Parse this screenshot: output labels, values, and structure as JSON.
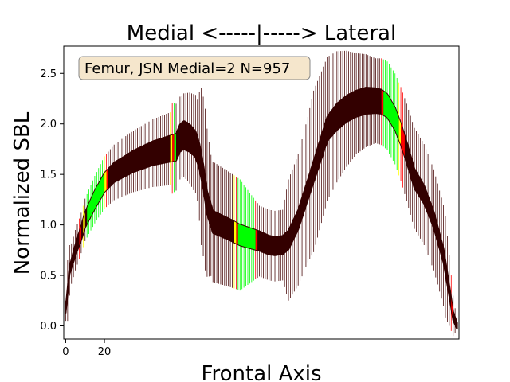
{
  "chart_data": {
    "type": "line",
    "title": "Medial <-----|-----> Lateral",
    "xlabel": "Frontal Axis",
    "ylabel": "Normalized SBL",
    "annotation": "Femur, JSN Medial=2 N=957",
    "xlim": [
      -1,
      203
    ],
    "ylim": [
      -0.13,
      2.77
    ],
    "xticks": [
      0,
      20
    ],
    "xtick_labels": [
      "0",
      "20"
    ],
    "yticks": [
      0.0,
      0.5,
      1.0,
      1.5,
      2.0,
      2.5
    ],
    "ytick_labels": [
      "0.0",
      "0.5",
      "1.0",
      "1.5",
      "2.0",
      "2.5"
    ],
    "grid": false,
    "colors": {
      "mean": "#330000",
      "errorbar": "#4a0c0c",
      "sig_high": "#00ff00",
      "sig_mid": "#ffff00",
      "sig_low": "#ff0000",
      "annotation_fill": "#f5e6cc",
      "annotation_edge": "#888888"
    },
    "profile_knots": [
      [
        0,
        0.15
      ],
      [
        2,
        0.55
      ],
      [
        5,
        0.75
      ],
      [
        8,
        0.92
      ],
      [
        10,
        1.05
      ],
      [
        15,
        1.25
      ],
      [
        20,
        1.42
      ],
      [
        25,
        1.52
      ],
      [
        35,
        1.63
      ],
      [
        45,
        1.71
      ],
      [
        55,
        1.76
      ],
      [
        57,
        1.77
      ],
      [
        59,
        1.86
      ],
      [
        61,
        1.89
      ],
      [
        64,
        1.86
      ],
      [
        67,
        1.8
      ],
      [
        69,
        1.68
      ],
      [
        71,
        1.48
      ],
      [
        73,
        1.22
      ],
      [
        76,
        1.03
      ],
      [
        85,
        0.95
      ],
      [
        90,
        0.9
      ],
      [
        100,
        0.84
      ],
      [
        105,
        0.8
      ],
      [
        108,
        0.79
      ],
      [
        112,
        0.8
      ],
      [
        115,
        0.85
      ],
      [
        120,
        1.05
      ],
      [
        125,
        1.35
      ],
      [
        130,
        1.65
      ],
      [
        135,
        1.95
      ],
      [
        140,
        2.07
      ],
      [
        145,
        2.15
      ],
      [
        150,
        2.2
      ],
      [
        155,
        2.23
      ],
      [
        160,
        2.23
      ],
      [
        163,
        2.22
      ],
      [
        166,
        2.18
      ],
      [
        170,
        2.05
      ],
      [
        173,
        1.9
      ],
      [
        176,
        1.72
      ],
      [
        180,
        1.46
      ],
      [
        185,
        1.3
      ],
      [
        190,
        1.05
      ],
      [
        195,
        0.7
      ],
      [
        198,
        0.35
      ],
      [
        200,
        0.1
      ],
      [
        202,
        0.0
      ]
    ],
    "thickness_knots": [
      [
        0,
        0.02
      ],
      [
        4,
        0.05
      ],
      [
        8,
        0.07
      ],
      [
        15,
        0.09
      ],
      [
        30,
        0.1
      ],
      [
        55,
        0.13
      ],
      [
        62,
        0.14
      ],
      [
        75,
        0.11
      ],
      [
        95,
        0.1
      ],
      [
        110,
        0.09
      ],
      [
        125,
        0.1
      ],
      [
        140,
        0.13
      ],
      [
        155,
        0.13
      ],
      [
        170,
        0.11
      ],
      [
        185,
        0.09
      ],
      [
        195,
        0.07
      ],
      [
        202,
        0.03
      ]
    ],
    "errorbar_knots": [
      [
        0,
        0.1
      ],
      [
        1,
        0.3
      ],
      [
        3,
        0.2
      ],
      [
        8,
        0.2
      ],
      [
        20,
        0.26
      ],
      [
        40,
        0.32
      ],
      [
        50,
        0.35
      ],
      [
        54,
        0.36
      ],
      [
        55,
        0.45
      ],
      [
        60,
        0.4
      ],
      [
        68,
        0.5
      ],
      [
        70,
        0.78
      ],
      [
        72,
        0.8
      ],
      [
        75,
        0.6
      ],
      [
        90,
        0.55
      ],
      [
        100,
        0.35
      ],
      [
        112,
        0.35
      ],
      [
        115,
        0.6
      ],
      [
        120,
        0.65
      ],
      [
        125,
        0.72
      ],
      [
        128,
        0.8
      ],
      [
        132,
        0.75
      ],
      [
        140,
        0.65
      ],
      [
        150,
        0.5
      ],
      [
        160,
        0.42
      ],
      [
        170,
        0.45
      ],
      [
        180,
        0.5
      ],
      [
        190,
        0.5
      ],
      [
        196,
        0.5
      ],
      [
        200,
        0.2
      ],
      [
        202,
        0.05
      ]
    ],
    "significance_bands": [
      {
        "x": [
          7,
          8
        ],
        "color": "sig_low"
      },
      {
        "x": [
          9,
          10
        ],
        "color": "sig_mid"
      },
      {
        "x": [
          11,
          20
        ],
        "color": "sig_high"
      },
      {
        "x": [
          20,
          21
        ],
        "color": "sig_mid"
      },
      {
        "x": [
          21,
          22
        ],
        "color": "sig_low"
      },
      {
        "x": [
          54,
          55
        ],
        "color": "sig_mid"
      },
      {
        "x": [
          55,
          56
        ],
        "color": "sig_low"
      },
      {
        "x": [
          56,
          57
        ],
        "color": "sig_high"
      },
      {
        "x": [
          87,
          88
        ],
        "color": "sig_mid"
      },
      {
        "x": [
          88,
          89
        ],
        "color": "sig_low"
      },
      {
        "x": [
          89,
          98
        ],
        "color": "sig_high"
      },
      {
        "x": [
          98,
          99
        ],
        "color": "sig_low"
      },
      {
        "x": [
          163,
          164
        ],
        "color": "sig_low"
      },
      {
        "x": [
          164,
          172
        ],
        "color": "sig_high"
      },
      {
        "x": [
          172,
          173
        ],
        "color": "sig_mid"
      },
      {
        "x": [
          173,
          175
        ],
        "color": "sig_low"
      },
      {
        "x": [
          199,
          200
        ],
        "color": "sig_low"
      }
    ]
  }
}
